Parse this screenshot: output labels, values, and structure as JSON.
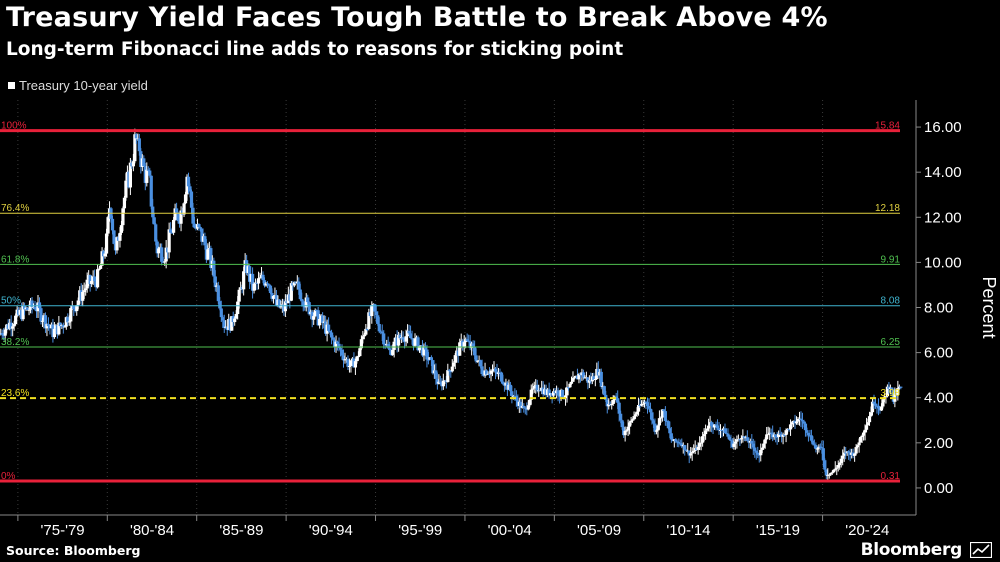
{
  "chart_data": {
    "type": "candlestick",
    "title": "Treasury Yield Faces Tough Battle to Break Above 4%",
    "subtitle": "Long-term Fibonacci line adds to reasons for sticking point",
    "legend": [
      "Treasury 10-year yield"
    ],
    "ylabel": "Percent",
    "ylim": [
      -1.2,
      17.2
    ],
    "yticks": [
      "0.00",
      "2.00",
      "4.00",
      "6.00",
      "8.00",
      "10.00",
      "12.00",
      "14.00",
      "16.00"
    ],
    "ytick_values": [
      0,
      2,
      4,
      6,
      8,
      10,
      12,
      14,
      16
    ],
    "xlim": [
      1974.0,
      2025.0
    ],
    "x_categories": [
      "'75-'79",
      "'80-'84",
      "'85-'89",
      "'90-'94",
      "'95-'99",
      "'00-'04",
      "'05-'09",
      "'10-'14",
      "'15-'19",
      "'20-'24"
    ],
    "x_category_starts": [
      1975,
      1980,
      1985,
      1990,
      1995,
      2000,
      2005,
      2010,
      2015,
      2020
    ],
    "fib_levels": [
      {
        "left_label": "100%",
        "value": 15.84,
        "value_label": "15.84",
        "color": "#e8213a",
        "bold": true
      },
      {
        "left_label": "76.4%",
        "value": 12.18,
        "value_label": "12.18",
        "color": "#e0d040",
        "bold": false
      },
      {
        "left_label": "61.8%",
        "value": 9.91,
        "value_label": "9.91",
        "color": "#50c050",
        "bold": false
      },
      {
        "left_label": "50%",
        "value": 8.08,
        "value_label": "8.08",
        "color": "#3fb4cf",
        "bold": false
      },
      {
        "left_label": "38.2%",
        "value": 6.25,
        "value_label": "6.25",
        "color": "#50c050",
        "bold": false
      },
      {
        "left_label": "23.6%",
        "value": 3.98,
        "value_label": "3.98",
        "color": "#f0e020",
        "bold": false,
        "dashed": true
      },
      {
        "left_label": "0%",
        "value": 0.31,
        "value_label": "0.31",
        "color": "#e8213a",
        "bold": true
      }
    ],
    "yield_path": [
      [
        1974.0,
        6.8
      ],
      [
        1974.6,
        7.3
      ],
      [
        1975.3,
        7.8
      ],
      [
        1976.0,
        8.1
      ],
      [
        1976.5,
        7.5
      ],
      [
        1977.0,
        6.9
      ],
      [
        1977.6,
        7.3
      ],
      [
        1978.3,
        8.2
      ],
      [
        1978.9,
        9.0
      ],
      [
        1979.5,
        9.3
      ],
      [
        1980.0,
        10.9
      ],
      [
        1980.2,
        12.8
      ],
      [
        1980.5,
        10.3
      ],
      [
        1980.9,
        12.5
      ],
      [
        1981.3,
        14.0
      ],
      [
        1981.7,
        15.84
      ],
      [
        1982.0,
        14.3
      ],
      [
        1982.4,
        13.5
      ],
      [
        1982.8,
        10.6
      ],
      [
        1983.3,
        10.4
      ],
      [
        1983.8,
        11.9
      ],
      [
        1984.2,
        12.3
      ],
      [
        1984.5,
        13.9
      ],
      [
        1984.9,
        11.6
      ],
      [
        1985.3,
        11.2
      ],
      [
        1985.8,
        10.1
      ],
      [
        1986.2,
        8.8
      ],
      [
        1986.6,
        7.2
      ],
      [
        1987.0,
        7.3
      ],
      [
        1987.4,
        8.4
      ],
      [
        1987.8,
        9.9
      ],
      [
        1988.2,
        8.8
      ],
      [
        1988.6,
        9.2
      ],
      [
        1989.0,
        9.3
      ],
      [
        1989.5,
        8.1
      ],
      [
        1989.9,
        7.9
      ],
      [
        1990.3,
        8.7
      ],
      [
        1990.7,
        8.9
      ],
      [
        1991.2,
        8.1
      ],
      [
        1991.7,
        7.6
      ],
      [
        1992.1,
        7.3
      ],
      [
        1992.6,
        6.6
      ],
      [
        1993.0,
        6.2
      ],
      [
        1993.6,
        5.4
      ],
      [
        1994.0,
        5.7
      ],
      [
        1994.5,
        7.2
      ],
      [
        1994.9,
        7.9
      ],
      [
        1995.3,
        7.1
      ],
      [
        1995.8,
        6.0
      ],
      [
        1996.2,
        6.5
      ],
      [
        1996.6,
        6.8
      ],
      [
        1997.1,
        6.6
      ],
      [
        1997.6,
        6.2
      ],
      [
        1998.1,
        5.6
      ],
      [
        1998.6,
        4.5
      ],
      [
        1999.0,
        4.9
      ],
      [
        1999.5,
        5.8
      ],
      [
        2000.0,
        6.6
      ],
      [
        2000.5,
        6.1
      ],
      [
        2001.0,
        5.2
      ],
      [
        2001.5,
        5.2
      ],
      [
        2002.0,
        5.0
      ],
      [
        2002.5,
        4.4
      ],
      [
        2002.9,
        3.9
      ],
      [
        2003.4,
        3.4
      ],
      [
        2003.8,
        4.3
      ],
      [
        2004.2,
        4.5
      ],
      [
        2004.6,
        4.2
      ],
      [
        2005.1,
        4.3
      ],
      [
        2005.6,
        4.1
      ],
      [
        2006.0,
        4.6
      ],
      [
        2006.5,
        5.1
      ],
      [
        2007.0,
        4.7
      ],
      [
        2007.5,
        5.2
      ],
      [
        2008.0,
        3.7
      ],
      [
        2008.5,
        4.0
      ],
      [
        2008.9,
        2.4
      ],
      [
        2009.3,
        2.9
      ],
      [
        2009.8,
        3.6
      ],
      [
        2010.2,
        3.9
      ],
      [
        2010.7,
        2.5
      ],
      [
        2011.1,
        3.5
      ],
      [
        2011.6,
        2.1
      ],
      [
        2012.1,
        2.0
      ],
      [
        2012.6,
        1.5
      ],
      [
        2013.1,
        1.8
      ],
      [
        2013.7,
        2.9
      ],
      [
        2014.1,
        2.7
      ],
      [
        2014.6,
        2.5
      ],
      [
        2015.0,
        1.9
      ],
      [
        2015.5,
        2.3
      ],
      [
        2016.0,
        2.0
      ],
      [
        2016.5,
        1.4
      ],
      [
        2016.9,
        2.4
      ],
      [
        2017.4,
        2.3
      ],
      [
        2017.9,
        2.4
      ],
      [
        2018.3,
        2.8
      ],
      [
        2018.8,
        3.1
      ],
      [
        2019.2,
        2.5
      ],
      [
        2019.7,
        1.7
      ],
      [
        2020.0,
        1.8
      ],
      [
        2020.2,
        0.6
      ],
      [
        2020.6,
        0.7
      ],
      [
        2021.0,
        1.1
      ],
      [
        2021.3,
        1.6
      ],
      [
        2021.8,
        1.5
      ],
      [
        2022.2,
        2.3
      ],
      [
        2022.6,
        3.0
      ],
      [
        2022.9,
        3.9
      ],
      [
        2023.3,
        3.5
      ],
      [
        2023.8,
        4.7
      ],
      [
        2024.0,
        3.9
      ],
      [
        2024.3,
        4.4
      ]
    ]
  },
  "footer": {
    "source": "Source: Bloomberg",
    "brand": "Bloomberg"
  },
  "colors": {
    "up": "#ffffff",
    "down": "#4a8fe0",
    "bg": "#000000",
    "axis": "#888888"
  }
}
